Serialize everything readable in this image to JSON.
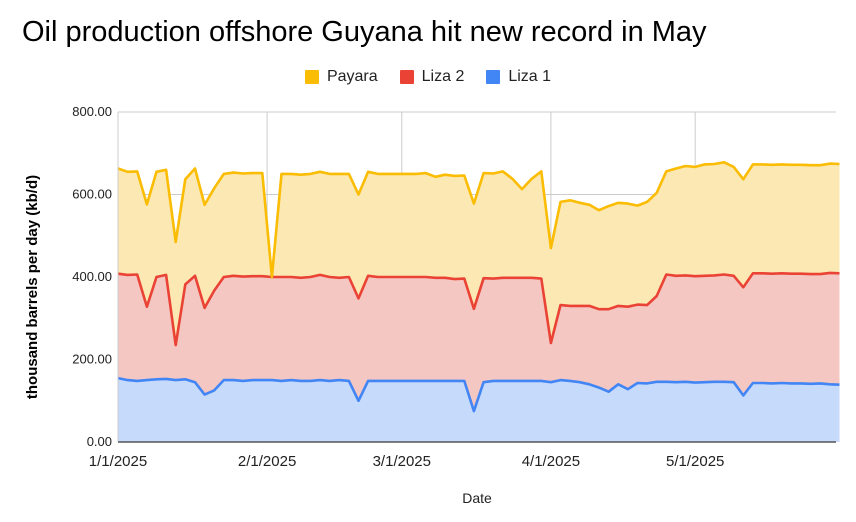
{
  "chart_data": {
    "type": "area",
    "title": "Oil production offshore Guyana hit new record in May",
    "xlabel": "Date",
    "ylabel": "thousand barrels per day (kb/d)",
    "stacked": true,
    "ylim": [
      0,
      800
    ],
    "y_ticks": [
      "0.00",
      "200.00",
      "400.00",
      "600.00",
      "800.00"
    ],
    "x_ticks": [
      "1/1/2025",
      "2/1/2025",
      "3/1/2025",
      "4/1/2025",
      "5/1/2025"
    ],
    "legend_position": "top",
    "grid": true,
    "x": [
      "2025-01-01",
      "2025-01-03",
      "2025-01-05",
      "2025-01-07",
      "2025-01-09",
      "2025-01-11",
      "2025-01-13",
      "2025-01-15",
      "2025-01-17",
      "2025-01-19",
      "2025-01-21",
      "2025-01-23",
      "2025-01-25",
      "2025-01-27",
      "2025-01-29",
      "2025-01-31",
      "2025-02-02",
      "2025-02-04",
      "2025-02-06",
      "2025-02-08",
      "2025-02-10",
      "2025-02-12",
      "2025-02-14",
      "2025-02-16",
      "2025-02-18",
      "2025-02-20",
      "2025-02-22",
      "2025-02-24",
      "2025-02-26",
      "2025-02-28",
      "2025-03-02",
      "2025-03-04",
      "2025-03-06",
      "2025-03-08",
      "2025-03-10",
      "2025-03-12",
      "2025-03-14",
      "2025-03-16",
      "2025-03-18",
      "2025-03-20",
      "2025-03-22",
      "2025-03-24",
      "2025-03-26",
      "2025-03-28",
      "2025-03-30",
      "2025-04-01",
      "2025-04-03",
      "2025-04-05",
      "2025-04-07",
      "2025-04-09",
      "2025-04-11",
      "2025-04-13",
      "2025-04-15",
      "2025-04-17",
      "2025-04-19",
      "2025-04-21",
      "2025-04-23",
      "2025-04-25",
      "2025-04-27",
      "2025-04-29",
      "2025-05-01",
      "2025-05-03",
      "2025-05-05",
      "2025-05-07",
      "2025-05-09",
      "2025-05-11",
      "2025-05-13",
      "2025-05-15",
      "2025-05-17",
      "2025-05-19",
      "2025-05-21",
      "2025-05-23",
      "2025-05-25",
      "2025-05-27",
      "2025-05-29",
      "2025-05-31"
    ],
    "series": [
      {
        "name": "Liza 1",
        "color": "#4285f4",
        "fill": "#c6dafc",
        "values": [
          155,
          150,
          148,
          150,
          152,
          153,
          150,
          152,
          145,
          115,
          125,
          150,
          150,
          148,
          150,
          150,
          150,
          148,
          150,
          148,
          148,
          150,
          148,
          150,
          148,
          100,
          148,
          148,
          148,
          148,
          148,
          148,
          148,
          148,
          148,
          148,
          148,
          75,
          145,
          148,
          148,
          148,
          148,
          148,
          148,
          145,
          150,
          148,
          145,
          140,
          132,
          122,
          140,
          128,
          143,
          142,
          146,
          146,
          145,
          146,
          144,
          145,
          146,
          146,
          145,
          113,
          143,
          143,
          142,
          143,
          142,
          142,
          141,
          142,
          140,
          139
        ]
      },
      {
        "name": "Liza 2",
        "color": "#ea4335",
        "fill": "#f4c7c3",
        "values": [
          253,
          255,
          258,
          178,
          248,
          252,
          85,
          230,
          258,
          210,
          242,
          250,
          253,
          253,
          252,
          252,
          250,
          252,
          250,
          250,
          252,
          255,
          252,
          248,
          252,
          248,
          255,
          252,
          252,
          252,
          252,
          252,
          252,
          250,
          250,
          247,
          248,
          248,
          252,
          248,
          250,
          250,
          250,
          250,
          248,
          95,
          182,
          182,
          185,
          190,
          190,
          200,
          190,
          200,
          190,
          190,
          208,
          260,
          258,
          258,
          258,
          258,
          258,
          260,
          258,
          262,
          266,
          266,
          266,
          266,
          266,
          266,
          266,
          265,
          270,
          270
        ]
      },
      {
        "name": "Payara",
        "color": "#fbbc04",
        "fill": "#fce8b2",
        "values": [
          255,
          250,
          250,
          248,
          255,
          255,
          250,
          255,
          260,
          250,
          248,
          250,
          250,
          250,
          250,
          250,
          0,
          250,
          250,
          250,
          250,
          250,
          250,
          252,
          250,
          252,
          252,
          250,
          250,
          250,
          250,
          250,
          252,
          245,
          250,
          250,
          250,
          255,
          255,
          255,
          258,
          240,
          215,
          240,
          260,
          230,
          250,
          256,
          250,
          245,
          240,
          250,
          250,
          250,
          240,
          250,
          250,
          250,
          260,
          265,
          265,
          270,
          270,
          272,
          264,
          262,
          264,
          264,
          264,
          264,
          264,
          264,
          264,
          264,
          265,
          265
        ]
      }
    ]
  }
}
